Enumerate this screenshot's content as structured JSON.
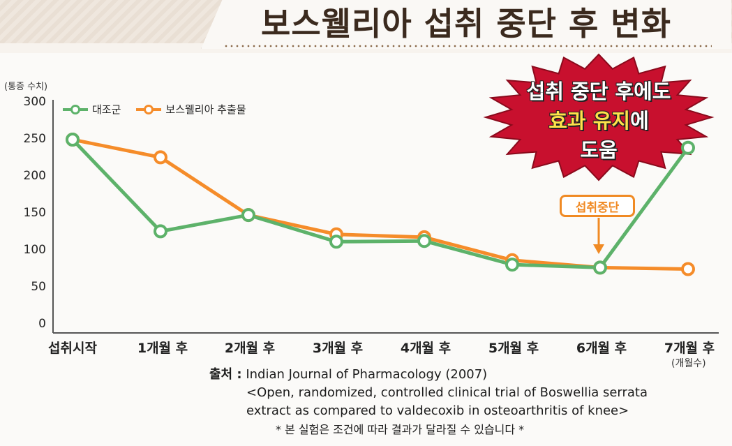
{
  "title": "보스웰리아 섭취 중단 후 변화",
  "chart_data": {
    "type": "line",
    "ylabel": "(통증 수치)",
    "xunit": "(개월수)",
    "ylim": [
      0,
      300
    ],
    "yticks": [
      "300",
      "250",
      "200",
      "150",
      "100",
      "50",
      "0"
    ],
    "categories": [
      "섭취시작",
      "1개월 후",
      "2개월 후",
      "3개월 후",
      "4개월 후",
      "5개월 후",
      "6개월 후",
      "7개월 후"
    ],
    "series": [
      {
        "name": "대조군",
        "color": "#5db26a",
        "values": [
          250,
          126,
          148,
          112,
          113,
          81,
          77,
          239
        ]
      },
      {
        "name": "보스웰리아 추출물",
        "color": "#f58c2a",
        "values": [
          250,
          226,
          148,
          122,
          118,
          87,
          77,
          75
        ]
      }
    ],
    "legend_position": "top-left",
    "grid": false
  },
  "callout": {
    "line1": "섭취 중단 후에도",
    "line2_highlight": "효과 유지",
    "line2_rest": "에",
    "line3": "도움",
    "color": "#c8102e"
  },
  "stop_marker": "섭취중단",
  "source": {
    "label": "출처 :",
    "line1": "Indian Journal of Pharmacology (2007)",
    "line2": "<Open, randomized, controlled clinical trial of Boswellia serrata",
    "line3": "extract as compared to valdecoxib in osteoarthritis of knee>"
  },
  "note": "* 본 실험은 조건에 따라 결과가 달라질 수 있습니다 *"
}
